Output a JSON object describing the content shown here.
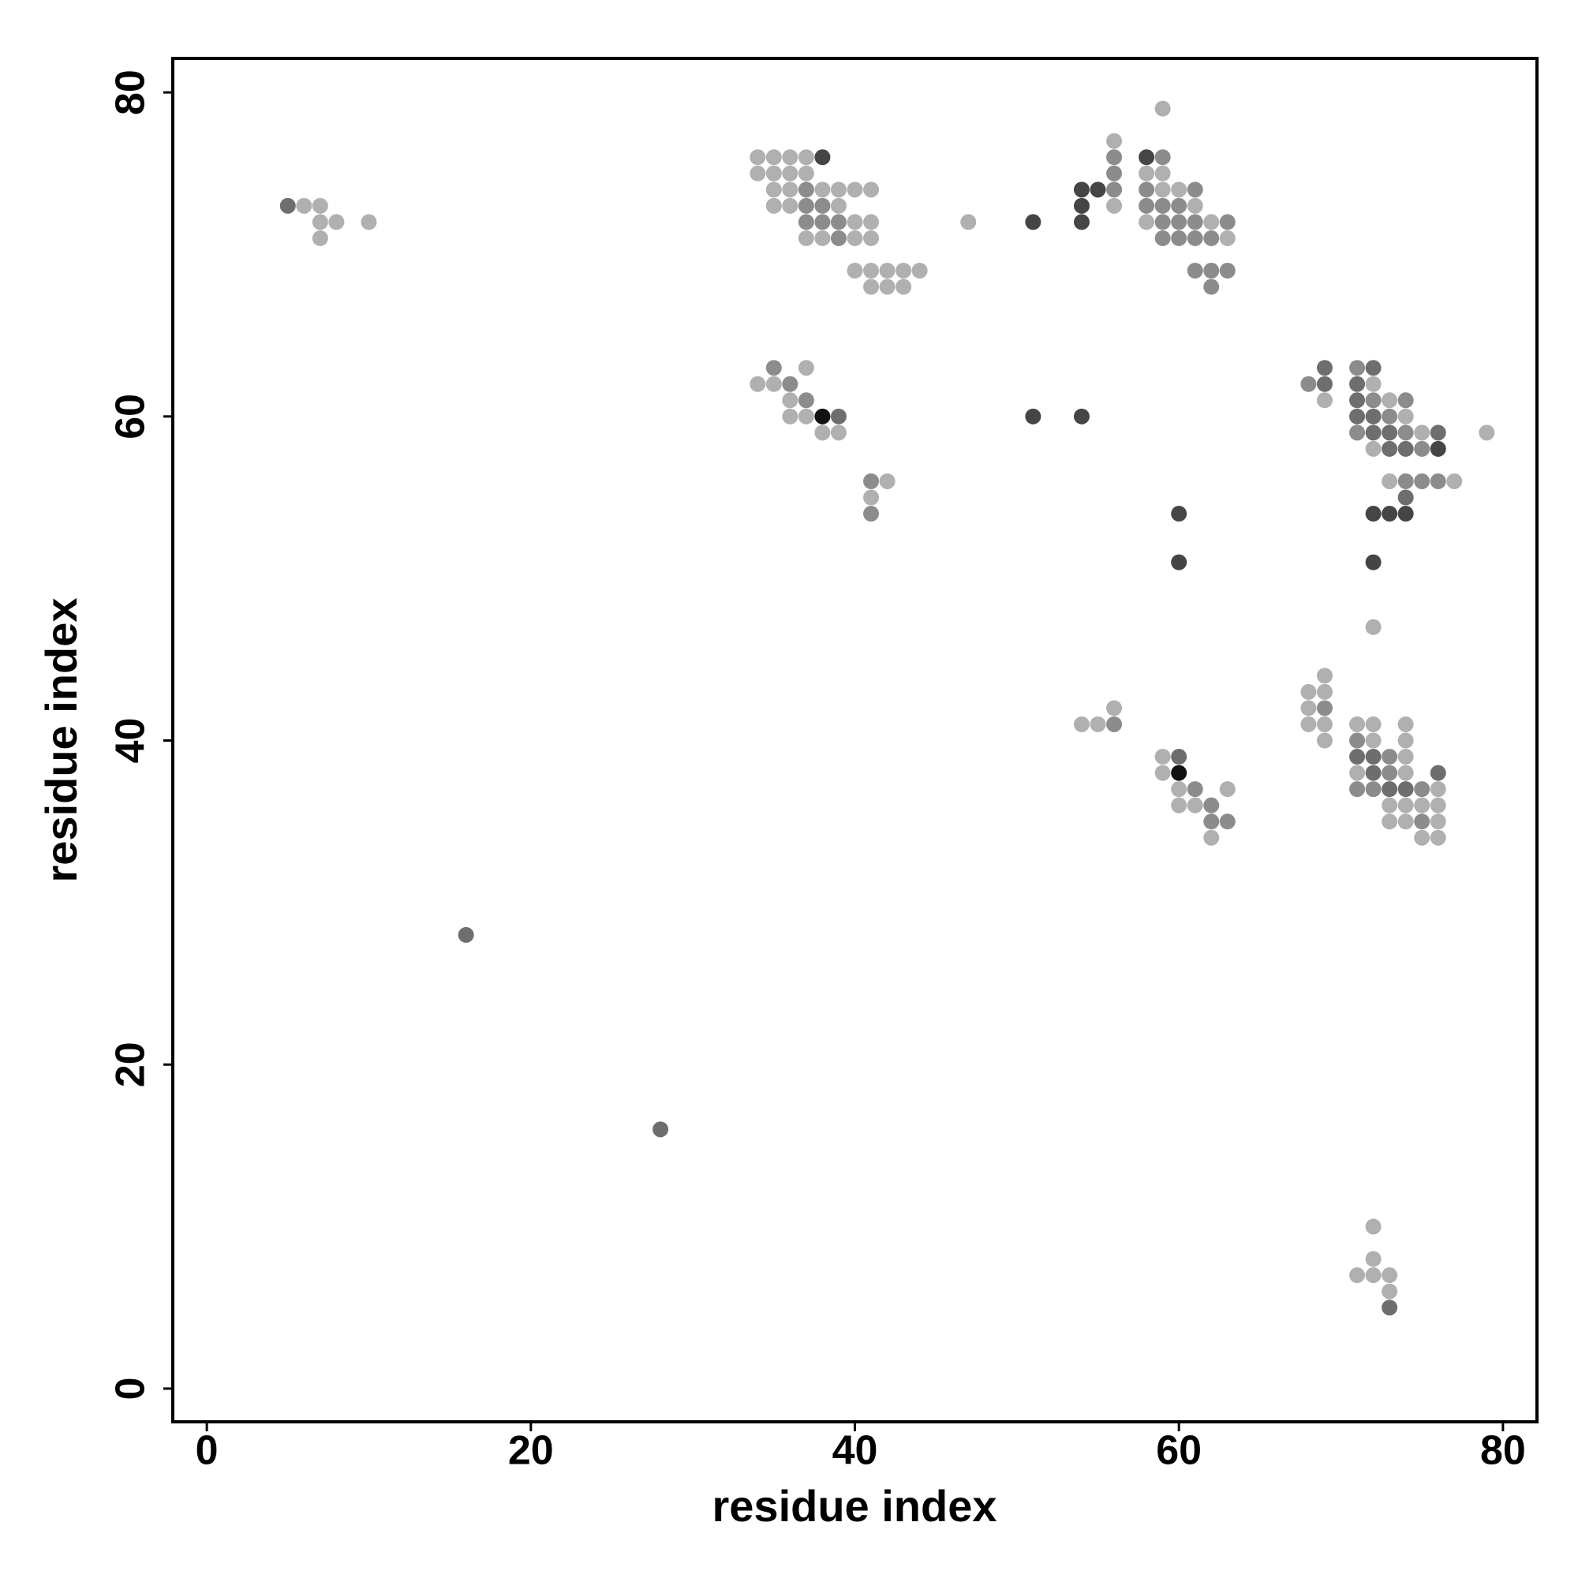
{
  "chart_data": {
    "type": "scatter",
    "xlabel": "residue index",
    "ylabel": "residue index",
    "xlim": [
      -2.1,
      82.1
    ],
    "ylim": [
      -2.05,
      82.1
    ],
    "xticks": [
      0,
      20,
      40,
      60,
      80
    ],
    "yticks": [
      0,
      20,
      40,
      60,
      80
    ],
    "grid": false,
    "series": [
      {
        "color": "#b0b0b0",
        "x": [
          6,
          7,
          7,
          8,
          7,
          10,
          34,
          35,
          36,
          37,
          34,
          35,
          36,
          37,
          35,
          36,
          38,
          39,
          40,
          41,
          35,
          36,
          39,
          40,
          41,
          37,
          38,
          40,
          41,
          40,
          41,
          42,
          43,
          44,
          41,
          42,
          43,
          47,
          56,
          56,
          59,
          58,
          59,
          59,
          60,
          61,
          58,
          62,
          63,
          37,
          34,
          35,
          36,
          36,
          37,
          38,
          39,
          42,
          41,
          72,
          69,
          73,
          74,
          75,
          79,
          72,
          73,
          77,
          72,
          69,
          68,
          69,
          68,
          68,
          69,
          69,
          54,
          55,
          56,
          59,
          59,
          60,
          63,
          60,
          61,
          62,
          71,
          72,
          74,
          72,
          74,
          74,
          71,
          74,
          76,
          73,
          74,
          75,
          76,
          73,
          74,
          76,
          75,
          76,
          72,
          72,
          71,
          72,
          73,
          73
        ],
        "y": [
          73,
          73,
          72,
          72,
          71,
          72,
          76,
          76,
          76,
          76,
          75,
          75,
          75,
          75,
          74,
          74,
          74,
          74,
          74,
          74,
          73,
          73,
          73,
          72,
          72,
          71,
          71,
          71,
          71,
          69,
          69,
          69,
          69,
          69,
          68,
          68,
          68,
          72,
          77,
          73,
          79,
          75,
          75,
          74,
          74,
          73,
          72,
          72,
          71,
          63,
          62,
          62,
          61,
          60,
          60,
          59,
          59,
          56,
          55,
          62,
          61,
          61,
          60,
          59,
          59,
          58,
          56,
          56,
          47,
          44,
          43,
          43,
          42,
          41,
          41,
          40,
          41,
          41,
          42,
          39,
          38,
          37,
          37,
          36,
          36,
          34,
          41,
          41,
          41,
          40,
          40,
          39,
          38,
          38,
          37,
          36,
          36,
          36,
          36,
          35,
          35,
          35,
          34,
          34,
          10,
          8,
          7,
          7,
          7,
          6
        ]
      },
      {
        "color": "#8c8c8c",
        "x": [
          37,
          37,
          38,
          37,
          38,
          39,
          39,
          56,
          56,
          56,
          59,
          58,
          61,
          58,
          59,
          60,
          59,
          60,
          61,
          63,
          59,
          60,
          61,
          62,
          61,
          62,
          63,
          62,
          35,
          36,
          37,
          41,
          41,
          71,
          68,
          72,
          74,
          73,
          71,
          74,
          75,
          74,
          75,
          76,
          69,
          56,
          61,
          62,
          62,
          63,
          71,
          73,
          73,
          71,
          72,
          75,
          75
        ],
        "y": [
          74,
          73,
          73,
          72,
          72,
          72,
          71,
          76,
          75,
          74,
          76,
          74,
          74,
          73,
          73,
          73,
          72,
          72,
          72,
          72,
          71,
          71,
          71,
          71,
          69,
          69,
          69,
          68,
          63,
          62,
          61,
          56,
          54,
          63,
          62,
          61,
          61,
          60,
          59,
          59,
          58,
          56,
          56,
          56,
          42,
          41,
          37,
          36,
          35,
          35,
          40,
          39,
          38,
          37,
          37,
          37,
          35
        ]
      },
      {
        "color": "#6e6e6e",
        "x": [
          5,
          16,
          28,
          39,
          69,
          72,
          69,
          71,
          71,
          71,
          72,
          72,
          73,
          76,
          73,
          74,
          74,
          60,
          71,
          72,
          72,
          76,
          73,
          74,
          73
        ],
        "y": [
          73,
          28,
          16,
          60,
          63,
          63,
          62,
          62,
          61,
          60,
          60,
          59,
          59,
          59,
          58,
          58,
          55,
          39,
          39,
          39,
          38,
          38,
          37,
          37,
          5
        ]
      },
      {
        "color": "#454545",
        "x": [
          38,
          51,
          54,
          54,
          54,
          55,
          58,
          51,
          54,
          60,
          60,
          76,
          72,
          73,
          74,
          72
        ],
        "y": [
          76,
          72,
          74,
          73,
          72,
          74,
          76,
          60,
          60,
          54,
          51,
          58,
          54,
          54,
          54,
          51
        ]
      },
      {
        "color": "#111111",
        "x": [
          38,
          60
        ],
        "y": [
          60,
          38
        ]
      }
    ]
  }
}
